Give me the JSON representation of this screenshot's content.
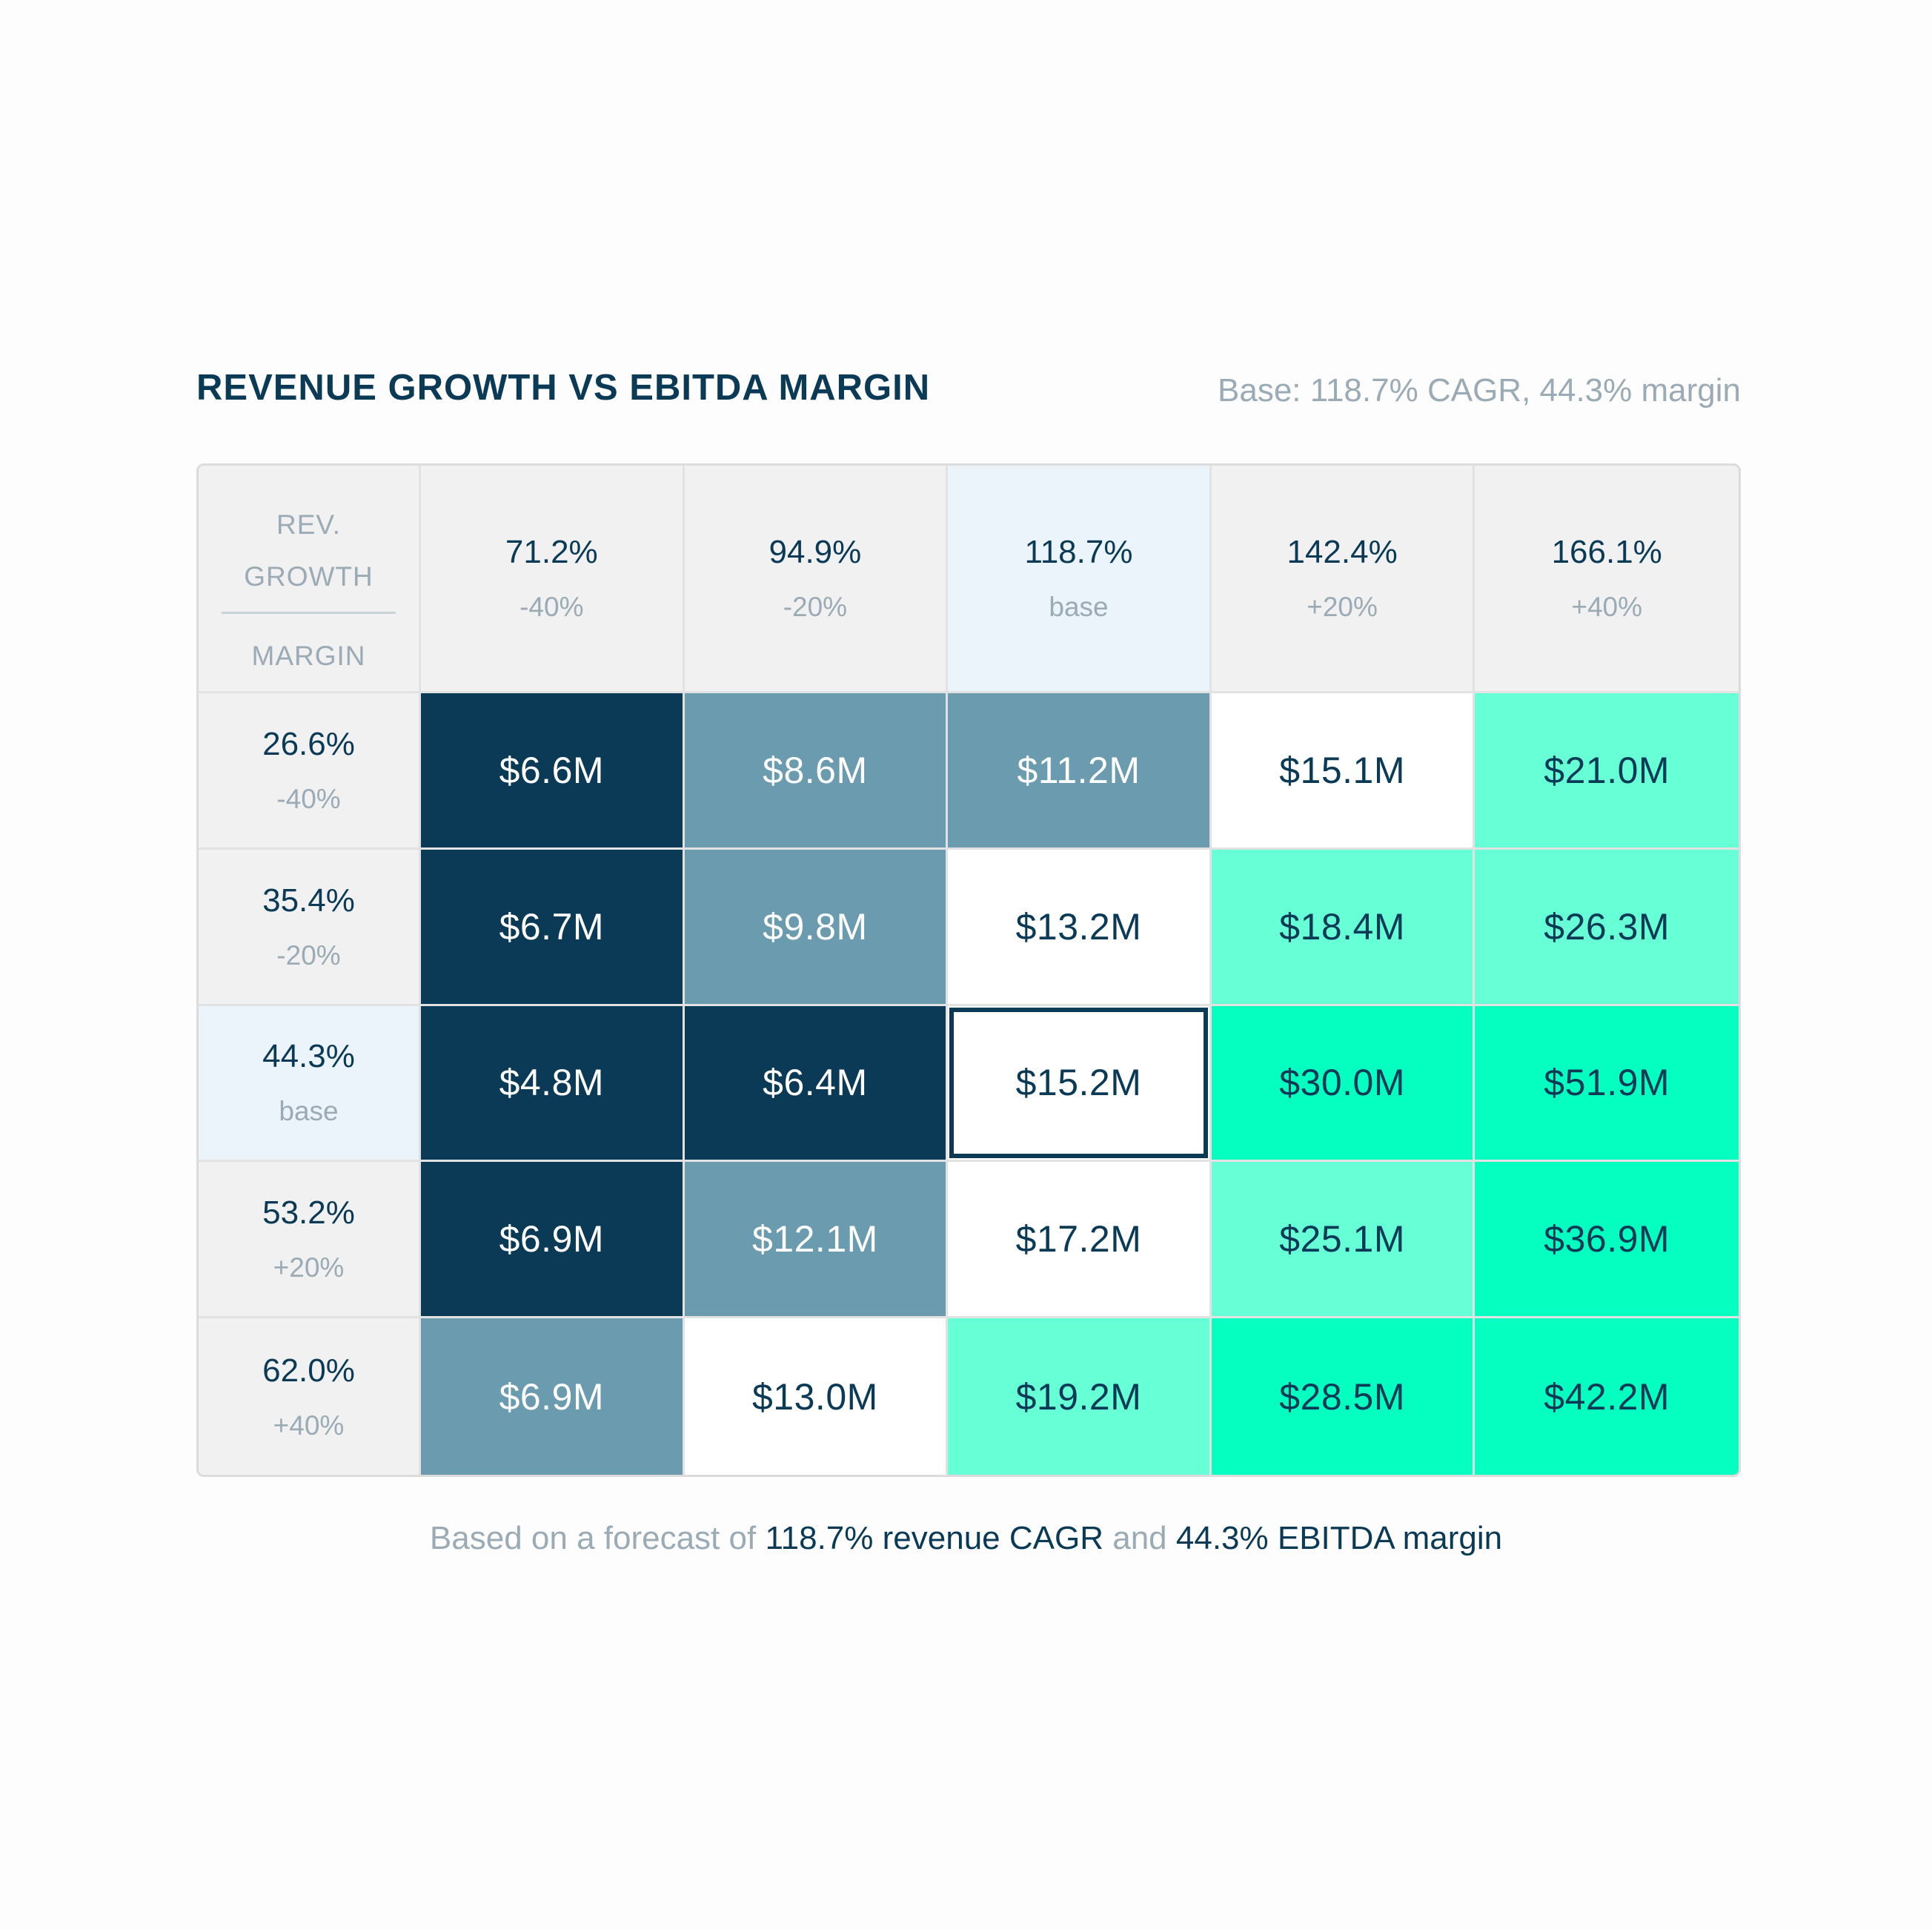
{
  "header": {
    "title": "REVENUE GROWTH VS EBITDA MARGIN",
    "base_note": "Base: 118.7% CAGR, 44.3% margin"
  },
  "corner": {
    "top_line1": "REV.",
    "top_line2": "GROWTH",
    "bottom": "MARGIN"
  },
  "footer": {
    "prefix": "Based on a forecast of",
    "cagr": "118.7% revenue CAGR",
    "joiner": "and",
    "margin": "44.3% EBITDA margin"
  },
  "colors": {
    "navy": "#0b3a56",
    "slate": "#6a9bae",
    "white": "#ffffff",
    "mint": "#66ffd6",
    "aqua": "#05ffc0",
    "base_header": "#eaf4fa"
  },
  "chart_data": {
    "type": "table",
    "title": "REVENUE GROWTH VS EBITDA MARGIN",
    "columns": [
      {
        "value": "71.2%",
        "delta": "-40%"
      },
      {
        "value": "94.9%",
        "delta": "-20%"
      },
      {
        "value": "118.7%",
        "delta": "base"
      },
      {
        "value": "142.4%",
        "delta": "+20%"
      },
      {
        "value": "166.1%",
        "delta": "+40%"
      }
    ],
    "rows": [
      {
        "value": "26.6%",
        "delta": "-40%",
        "cells": [
          "$6.6M",
          "$8.6M",
          "$11.2M",
          "$15.1M",
          "$21.0M"
        ]
      },
      {
        "value": "35.4%",
        "delta": "-20%",
        "cells": [
          "$6.7M",
          "$9.8M",
          "$13.2M",
          "$18.4M",
          "$26.3M"
        ]
      },
      {
        "value": "44.3%",
        "delta": "base",
        "cells": [
          "$4.8M",
          "$6.4M",
          "$15.2M",
          "$30.0M",
          "$51.9M"
        ]
      },
      {
        "value": "53.2%",
        "delta": "+20%",
        "cells": [
          "$6.9M",
          "$12.1M",
          "$17.2M",
          "$25.1M",
          "$36.9M"
        ]
      },
      {
        "value": "62.0%",
        "delta": "+40%",
        "cells": [
          "$6.9M",
          "$13.0M",
          "$19.2M",
          "$28.5M",
          "$42.2M"
        ]
      }
    ],
    "cell_tones": [
      [
        "navy",
        "slate",
        "slate",
        "white",
        "mint"
      ],
      [
        "navy",
        "slate",
        "white",
        "mint",
        "mint"
      ],
      [
        "navy",
        "navy",
        "white",
        "aqua",
        "aqua"
      ],
      [
        "navy",
        "slate",
        "white",
        "mint",
        "aqua"
      ],
      [
        "slate",
        "white",
        "mint",
        "aqua",
        "aqua"
      ]
    ],
    "base_row": 2,
    "base_col": 2
  }
}
